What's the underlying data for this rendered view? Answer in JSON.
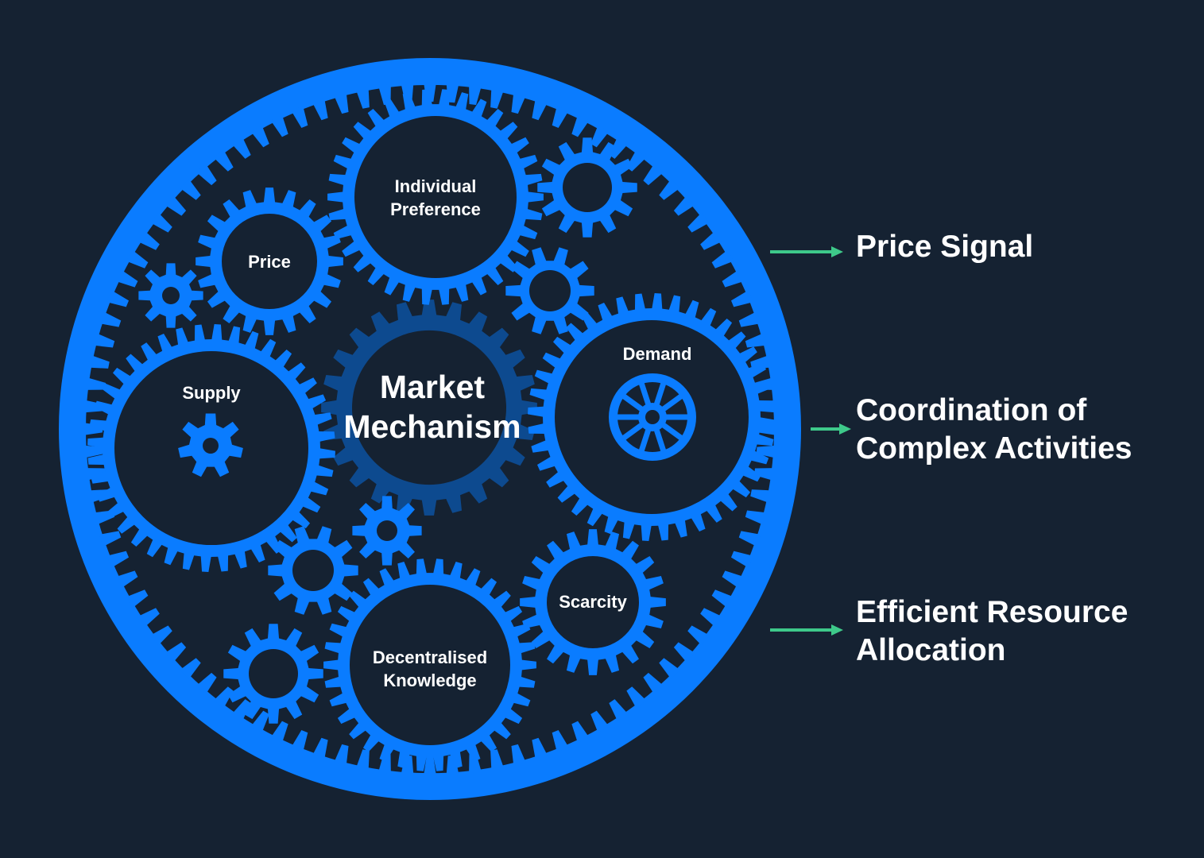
{
  "colors": {
    "background": "#152232",
    "gear": "#0a7cff",
    "center_gear": "#0d4a8f",
    "arrow": "#3ec98a",
    "text": "#ffffff"
  },
  "center": {
    "line1": "Market",
    "line2": "Mechanism"
  },
  "gears": {
    "individual_preference": {
      "line1": "Individual",
      "line2": "Preference"
    },
    "price": "Price",
    "supply": "Supply",
    "demand": "Demand",
    "scarcity": "Scarcity",
    "decentralised_knowledge": {
      "line1": "Decentralised",
      "line2": "Knowledge"
    }
  },
  "outcomes": {
    "price_signal": {
      "line1": "Price Signal"
    },
    "coordination": {
      "line1": "Coordination of",
      "line2": "Complex Activities"
    },
    "efficient_allocation": {
      "line1": "Efficient Resource",
      "line2": "Allocation"
    }
  }
}
